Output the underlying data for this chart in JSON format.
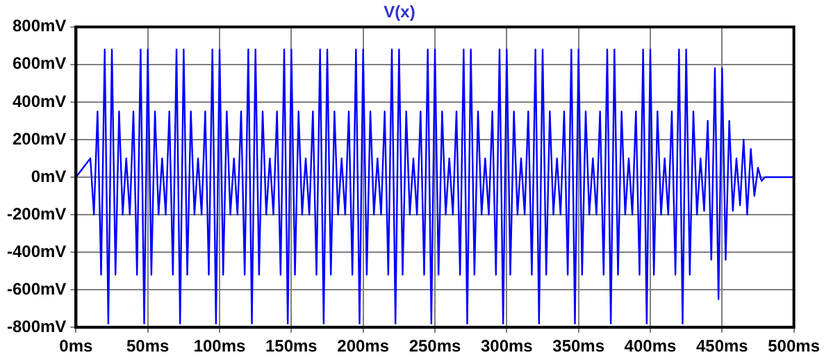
{
  "chart_data": {
    "type": "line",
    "title": "V(x)",
    "color": "#0000ff",
    "marker": "none",
    "grid": true,
    "xlim": [
      0,
      500
    ],
    "xticks": [
      {
        "value": 0,
        "label": "0ms"
      },
      {
        "value": 50,
        "label": "50ms"
      },
      {
        "value": 100,
        "label": "100ms"
      },
      {
        "value": 150,
        "label": "150ms"
      },
      {
        "value": 200,
        "label": "200ms"
      },
      {
        "value": 250,
        "label": "250ms"
      },
      {
        "value": 300,
        "label": "300ms"
      },
      {
        "value": 350,
        "label": "350ms"
      },
      {
        "value": 400,
        "label": "400ms"
      },
      {
        "value": 450,
        "label": "450ms"
      },
      {
        "value": 500,
        "label": "500ms"
      }
    ],
    "ylim": [
      -800,
      800
    ],
    "yticks": [
      {
        "value": -800,
        "label": "-800mV"
      },
      {
        "value": -600,
        "label": "-600mV"
      },
      {
        "value": -400,
        "label": "-400mV"
      },
      {
        "value": -200,
        "label": "-200mV"
      },
      {
        "value": 0,
        "label": "0mV"
      },
      {
        "value": 200,
        "label": "200mV"
      },
      {
        "value": 400,
        "label": "400mV"
      },
      {
        "value": 600,
        "label": "600mV"
      },
      {
        "value": 800,
        "label": "800mV"
      }
    ],
    "x": [
      0,
      10,
      12.5,
      15,
      17.5,
      20,
      22.5,
      25,
      27.5,
      30,
      32.5,
      35,
      37.5,
      40,
      42.5,
      45,
      47.5,
      50,
      52.5,
      55,
      57.5,
      60,
      62.5,
      65,
      67.5,
      70,
      72.5,
      75,
      77.5,
      80,
      82.5,
      85,
      87.5,
      90,
      92.5,
      95,
      97.5,
      100,
      102.5,
      105,
      107.5,
      110,
      112.5,
      115,
      117.5,
      120,
      122.5,
      125,
      127.5,
      130,
      132.5,
      135,
      137.5,
      140,
      142.5,
      145,
      147.5,
      150,
      152.5,
      155,
      157.5,
      160,
      162.5,
      165,
      167.5,
      170,
      172.5,
      175,
      177.5,
      180,
      182.5,
      185,
      187.5,
      190,
      192.5,
      195,
      197.5,
      200,
      202.5,
      205,
      207.5,
      210,
      212.5,
      215,
      217.5,
      220,
      222.5,
      225,
      227.5,
      230,
      232.5,
      235,
      237.5,
      240,
      242.5,
      245,
      247.5,
      250,
      252.5,
      255,
      257.5,
      260,
      262.5,
      265,
      267.5,
      270,
      272.5,
      275,
      277.5,
      280,
      282.5,
      285,
      287.5,
      290,
      292.5,
      295,
      297.5,
      300,
      302.5,
      305,
      307.5,
      310,
      312.5,
      315,
      317.5,
      320,
      322.5,
      325,
      327.5,
      330,
      332.5,
      335,
      337.5,
      340,
      342.5,
      345,
      347.5,
      350,
      352.5,
      355,
      357.5,
      360,
      362.5,
      365,
      367.5,
      370,
      372.5,
      375,
      377.5,
      380,
      382.5,
      385,
      387.5,
      390,
      392.5,
      395,
      397.5,
      400,
      402.5,
      405,
      407.5,
      410,
      412.5,
      415,
      417.5,
      420,
      422.5,
      425,
      427.5,
      430,
      432.5,
      435,
      437.5,
      440,
      442.5,
      445,
      447.5,
      450,
      452.5,
      455,
      457.5,
      460,
      462.5,
      465,
      467.5,
      470,
      472.5,
      475,
      477.5,
      480,
      500
    ],
    "values": [
      0,
      100,
      -200,
      350,
      -520,
      680,
      -780,
      680,
      -520,
      350,
      -200,
      100,
      -200,
      350,
      -520,
      680,
      -780,
      680,
      -520,
      350,
      -200,
      100,
      -200,
      350,
      -520,
      680,
      -780,
      680,
      -520,
      350,
      -200,
      100,
      -200,
      350,
      -520,
      680,
      -780,
      680,
      -520,
      350,
      -200,
      100,
      -200,
      350,
      -520,
      680,
      -780,
      680,
      -520,
      350,
      -200,
      100,
      -200,
      350,
      -520,
      680,
      -780,
      680,
      -520,
      350,
      -200,
      100,
      -200,
      350,
      -520,
      680,
      -780,
      680,
      -520,
      350,
      -200,
      100,
      -200,
      350,
      -520,
      680,
      -780,
      680,
      -520,
      350,
      -200,
      100,
      -200,
      350,
      -520,
      680,
      -780,
      680,
      -520,
      350,
      -200,
      100,
      -200,
      350,
      -520,
      680,
      -780,
      680,
      -520,
      350,
      -200,
      100,
      -200,
      350,
      -520,
      680,
      -780,
      680,
      -520,
      350,
      -200,
      100,
      -200,
      350,
      -520,
      680,
      -780,
      680,
      -520,
      350,
      -200,
      100,
      -200,
      350,
      -520,
      680,
      -780,
      680,
      -520,
      350,
      -200,
      100,
      -200,
      350,
      -520,
      680,
      -780,
      680,
      -520,
      350,
      -200,
      100,
      -200,
      350,
      -520,
      680,
      -780,
      680,
      -520,
      350,
      -200,
      100,
      -200,
      350,
      -520,
      680,
      -780,
      680,
      -520,
      350,
      -200,
      100,
      -200,
      350,
      -520,
      680,
      -780,
      680,
      -520,
      350,
      -200,
      100,
      -180,
      300,
      -440,
      580,
      -650,
      580,
      -440,
      300,
      -180,
      100,
      -150,
      200,
      -200,
      150,
      -100,
      50,
      -20,
      0,
      0
    ]
  }
}
